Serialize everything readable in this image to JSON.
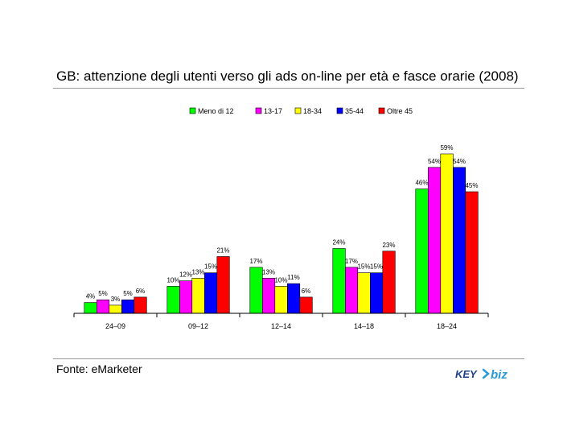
{
  "header": {
    "title": "GB: attenzione degli utenti verso gli ads on-line per età e fasce orarie (2008)"
  },
  "footer": {
    "source": "Fonte: eMarketer"
  },
  "logo": {
    "text_left": "KEY",
    "text_right": "biz",
    "colors": {
      "left": "#1d3f8c",
      "right": "#2a9ad6"
    }
  },
  "chart_data": {
    "type": "bar",
    "categories": [
      "24–09",
      "09–12",
      "12–14",
      "14–18",
      "18–24"
    ],
    "series": [
      {
        "name": "Meno di 12",
        "color": "#00ff00",
        "values": [
          4,
          10,
          17,
          24,
          46
        ],
        "labels": [
          "4%",
          "10%",
          "17%",
          "24%",
          "46%"
        ]
      },
      {
        "name": "13-17",
        "color": "#ff00ff",
        "values": [
          5,
          12,
          13,
          17,
          54
        ],
        "labels": [
          "5%",
          "12%",
          "13%",
          "17%",
          "54%"
        ]
      },
      {
        "name": "18-34",
        "color": "#ffff00",
        "values": [
          3,
          13,
          10,
          15,
          59
        ],
        "labels": [
          "3%",
          "13%",
          "10%",
          "15%",
          "59%"
        ]
      },
      {
        "name": "35-44",
        "color": "#0000ff",
        "values": [
          5,
          15,
          11,
          15,
          54
        ],
        "labels": [
          "5%",
          "15%",
          "11%",
          "15%",
          "54%"
        ]
      },
      {
        "name": "Oltre 45",
        "color": "#ff0000",
        "values": [
          6,
          21,
          6,
          23,
          45
        ],
        "labels": [
          "6%",
          "21%",
          "6%",
          "23%",
          "45%"
        ]
      }
    ],
    "ylim": [
      0,
      60
    ],
    "legend_position": "top",
    "grid": false
  }
}
